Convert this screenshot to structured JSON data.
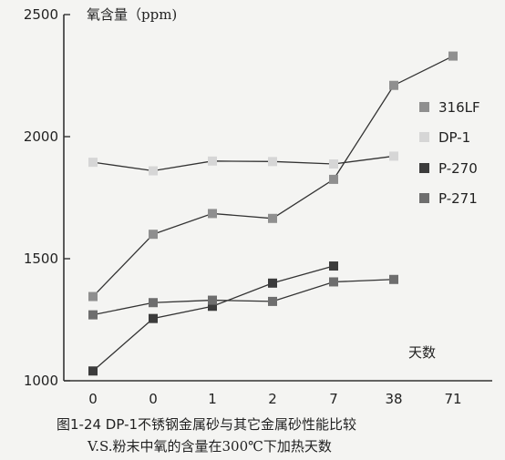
{
  "chart_data": {
    "type": "line",
    "title": "图1-24 DP-1不锈钢金属砂与其它金属砂性能比较",
    "subtitle": "V.S.粉末中氧的含量在300℃下加热天数",
    "ylabel": "氧含量（ppm)",
    "xlabel": "天数",
    "categories": [
      "0",
      "0",
      "1",
      "2",
      "7",
      "38",
      "71"
    ],
    "yticks": [
      1000,
      1500,
      2000,
      2500
    ],
    "ylim": [
      1000,
      2500
    ],
    "grid": false,
    "legend_position": "right",
    "series": [
      {
        "name": "316LF",
        "color": "#8f8f8f",
        "values": [
          1345,
          1600,
          1685,
          1665,
          1825,
          2210,
          2330
        ]
      },
      {
        "name": "DP-1",
        "color": "#d6d6d6",
        "values": [
          1895,
          1860,
          1900,
          1898,
          1888,
          1920,
          null
        ]
      },
      {
        "name": "P-270",
        "color": "#3c3c3c",
        "values": [
          1040,
          1255,
          1305,
          1400,
          1470,
          null,
          null
        ]
      },
      {
        "name": "P-271",
        "color": "#6e6e6e",
        "values": [
          1270,
          1320,
          1330,
          1325,
          1405,
          1415,
          null
        ]
      }
    ]
  }
}
